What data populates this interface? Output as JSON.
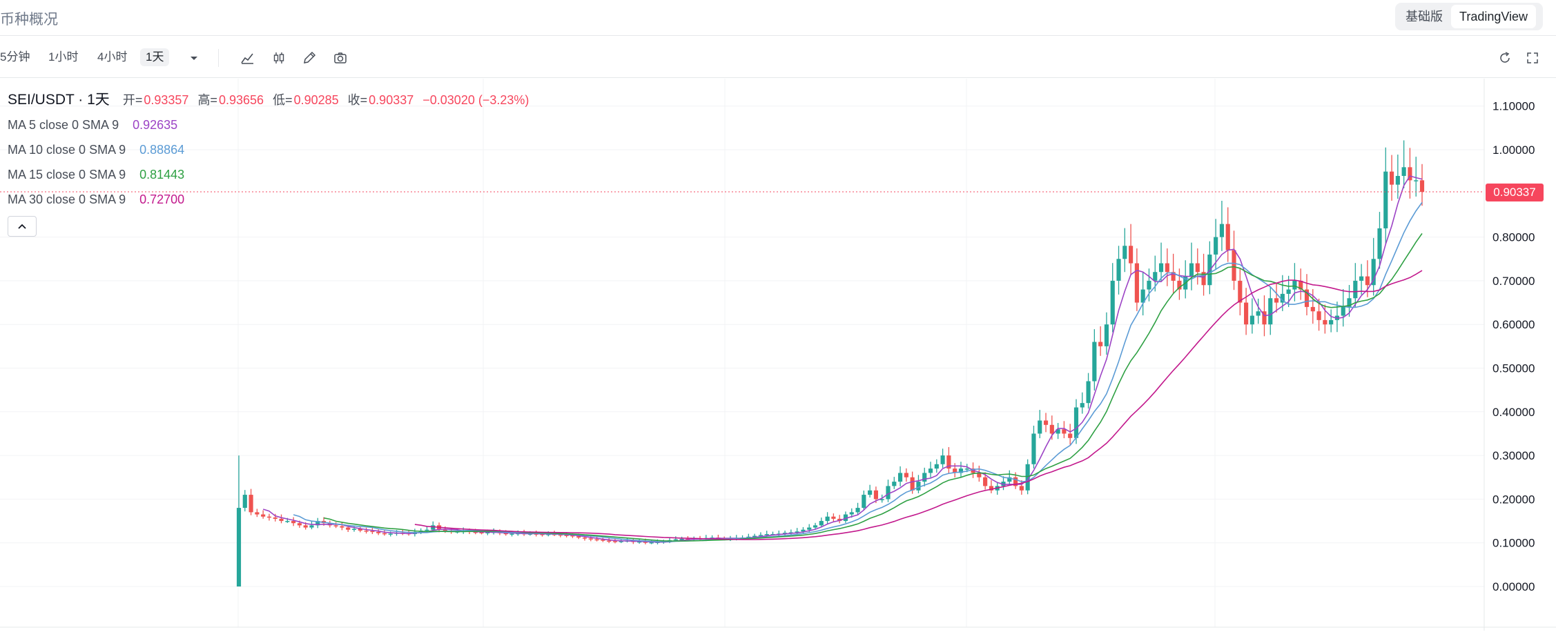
{
  "header": {
    "title": "币种概况",
    "toggle": [
      "基础版",
      "TradingView"
    ],
    "toggle_active": 1
  },
  "toolbar": {
    "intervals": [
      "5分钟",
      "1小时",
      "4小时",
      "1天"
    ],
    "active_interval": 3,
    "icons": [
      "chevron-down-icon",
      "line-chart-icon",
      "candle-icon",
      "pencil-icon",
      "camera-icon",
      "reload-icon",
      "fullscreen-icon"
    ]
  },
  "legend": {
    "symbol": "SEI/USDT · 1天",
    "o_label": "开=",
    "o": "0.93357",
    "h_label": "高=",
    "h": "0.93656",
    "l_label": "低=",
    "l": "0.90285",
    "c_label": "收=",
    "c": "0.90337",
    "change": "−0.03020 (−3.23%)",
    "ma": [
      {
        "label": "MA 5 close 0 SMA 9",
        "value": "0.92635",
        "color": "#9c43c5"
      },
      {
        "label": "MA 10 close 0 SMA 9",
        "value": "0.88864",
        "color": "#5b9bd5"
      },
      {
        "label": "MA 15 close 0 SMA 9",
        "value": "0.81443",
        "color": "#2ea043"
      },
      {
        "label": "MA 30 close 0 SMA 9",
        "value": "0.72700",
        "color": "#c2188c"
      }
    ]
  },
  "colors": {
    "up": "#26a69a",
    "down": "#ef5350",
    "last_price": "#f6465d",
    "grid": "#f2f3f5",
    "axis_text": "#131722",
    "legend_red": "#f6465d"
  },
  "chart_data": {
    "type": "candlestick",
    "symbol": "SEI/USDT",
    "interval": "1天",
    "ylim": [
      -0.07,
      1.2
    ],
    "y_ticks": [
      "1.10000",
      "1.00000",
      "0.80000",
      "0.70000",
      "0.60000",
      "0.50000",
      "0.40000",
      "0.30000",
      "0.20000",
      "0.10000",
      "0.00000"
    ],
    "last_price": "0.90337",
    "close": [
      0.18,
      0.21,
      0.17,
      0.165,
      0.16,
      0.158,
      0.155,
      0.15,
      0.15,
      0.145,
      0.14,
      0.135,
      0.14,
      0.15,
      0.145,
      0.14,
      0.138,
      0.135,
      0.13,
      0.132,
      0.128,
      0.127,
      0.125,
      0.122,
      0.12,
      0.121,
      0.123,
      0.122,
      0.12,
      0.125,
      0.128,
      0.13,
      0.14,
      0.13,
      0.128,
      0.125,
      0.126,
      0.127,
      0.125,
      0.124,
      0.123,
      0.124,
      0.125,
      0.122,
      0.12,
      0.121,
      0.122,
      0.12,
      0.121,
      0.12,
      0.119,
      0.12,
      0.119,
      0.118,
      0.117,
      0.115,
      0.112,
      0.11,
      0.108,
      0.107,
      0.105,
      0.104,
      0.103,
      0.104,
      0.105,
      0.102,
      0.103,
      0.1,
      0.101,
      0.102,
      0.103,
      0.106,
      0.108,
      0.109,
      0.108,
      0.11,
      0.109,
      0.111,
      0.112,
      0.11,
      0.109,
      0.11,
      0.111,
      0.112,
      0.114,
      0.116,
      0.118,
      0.12,
      0.12,
      0.121,
      0.123,
      0.124,
      0.126,
      0.13,
      0.135,
      0.14,
      0.15,
      0.16,
      0.155,
      0.15,
      0.165,
      0.17,
      0.18,
      0.21,
      0.22,
      0.2,
      0.2,
      0.23,
      0.24,
      0.26,
      0.25,
      0.22,
      0.24,
      0.26,
      0.27,
      0.28,
      0.3,
      0.27,
      0.26,
      0.27,
      0.27,
      0.26,
      0.25,
      0.23,
      0.22,
      0.23,
      0.24,
      0.25,
      0.23,
      0.22,
      0.28,
      0.35,
      0.38,
      0.37,
      0.35,
      0.36,
      0.35,
      0.34,
      0.41,
      0.42,
      0.47,
      0.56,
      0.55,
      0.6,
      0.7,
      0.75,
      0.78,
      0.74,
      0.65,
      0.68,
      0.7,
      0.72,
      0.74,
      0.72,
      0.7,
      0.68,
      0.71,
      0.74,
      0.72,
      0.69,
      0.76,
      0.8,
      0.83,
      0.77,
      0.7,
      0.65,
      0.6,
      0.62,
      0.63,
      0.6,
      0.66,
      0.65,
      0.67,
      0.68,
      0.7,
      0.68,
      0.64,
      0.63,
      0.61,
      0.6,
      0.61,
      0.62,
      0.64,
      0.66,
      0.7,
      0.71,
      0.69,
      0.75,
      0.82,
      0.95,
      0.92,
      0.94,
      0.96,
      0.93,
      0.93,
      0.90337
    ]
  }
}
